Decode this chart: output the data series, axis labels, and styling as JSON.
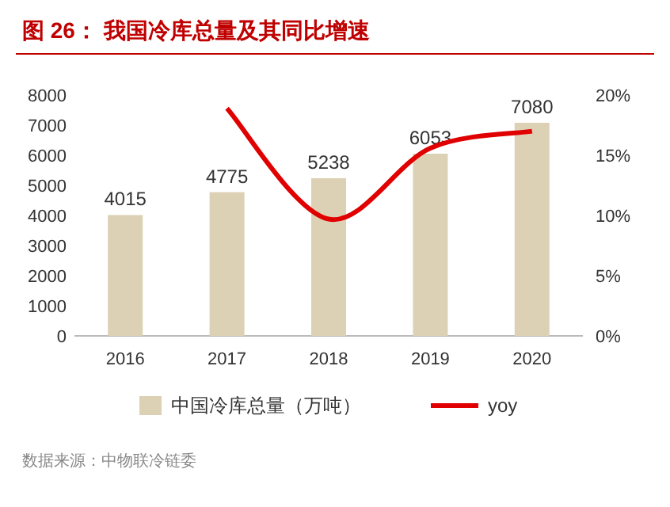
{
  "chart_data": {
    "type": "bar",
    "title": "图 26：  我国冷库总量及其同比增速",
    "categories": [
      "2016",
      "2017",
      "2018",
      "2019",
      "2020"
    ],
    "series": [
      {
        "name": "中国冷库总量（万吨）",
        "color": "#ddd1b5",
        "values": [
          4015,
          4775,
          5238,
          6053,
          7080
        ],
        "value_labels": [
          "4015",
          "4775",
          "5238",
          "6053",
          "7080"
        ]
      },
      {
        "name": "yoy",
        "type": "line",
        "axis": "y2",
        "color": "#e00000",
        "values": [
          null,
          18.9,
          9.7,
          15.6,
          17.0
        ]
      }
    ],
    "ylim": [
      0,
      8000
    ],
    "yticks": [
      0,
      1000,
      2000,
      3000,
      4000,
      5000,
      6000,
      7000,
      8000
    ],
    "y2lim": [
      0,
      20
    ],
    "y2ticks": [
      {
        "value": 0,
        "label": "0%"
      },
      {
        "value": 5,
        "label": "5%"
      },
      {
        "value": 10,
        "label": "10%"
      },
      {
        "value": 15,
        "label": "15%"
      },
      {
        "value": 20,
        "label": "20%"
      }
    ],
    "legend": "bottom",
    "grid": false,
    "annotations": [
      "数据来源：中物联冷链委"
    ]
  }
}
